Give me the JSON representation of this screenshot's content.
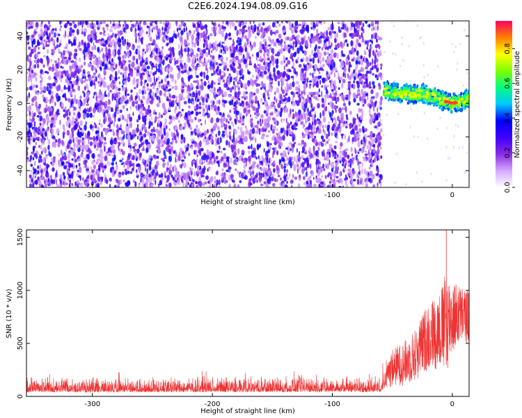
{
  "figure_title": "C2E6.2024.194.08.09.G16",
  "chart_data": [
    {
      "type": "heatmap",
      "xlabel": "Height of straight line (km)",
      "ylabel": "Frequency (Hz)",
      "xlim": [
        -355,
        14
      ],
      "ylim": [
        -50,
        49
      ],
      "x_ticks": [
        -300,
        -200,
        -100,
        0
      ],
      "y_ticks": [
        -40,
        -20,
        0,
        20,
        40
      ],
      "noise_region": {
        "x": [
          -355,
          -59
        ],
        "y": [
          -50,
          49
        ]
      },
      "signal_track": [
        {
          "x": -57,
          "y": 8
        },
        {
          "x": -45,
          "y": 6
        },
        {
          "x": -35,
          "y": 5.5
        },
        {
          "x": -25,
          "y": 6
        },
        {
          "x": -15,
          "y": 4
        },
        {
          "x": -8,
          "y": 1.5
        },
        {
          "x": 0,
          "y": 0
        },
        {
          "x": 7,
          "y": 1
        },
        {
          "x": 14,
          "y": 3
        }
      ],
      "colorbar": {
        "label": "Normalized spectral amplitude",
        "ticks": [
          "0.0",
          "0.2",
          "0.4",
          "0.6",
          "0.8"
        ],
        "range": [
          0,
          0.96
        ],
        "colors": [
          "#ffffff",
          "#d6a8ff",
          "#8a2be2",
          "#4000ff",
          "#0000ff",
          "#00c8ff",
          "#00ff80",
          "#80ff00",
          "#ffff00",
          "#ff8000",
          "#ff0060"
        ]
      },
      "grid": false
    },
    {
      "type": "line",
      "xlabel": "Height of straight line (km)",
      "ylabel": "SNR (10 * v/v)",
      "xlim": [
        -355,
        14
      ],
      "ylim": [
        0,
        1570
      ],
      "x_ticks": [
        -300,
        -200,
        -100,
        0
      ],
      "y_ticks": [
        0,
        500,
        1000,
        1500
      ],
      "color": "#ee3333",
      "envelope": [
        {
          "x": -355,
          "low": 5,
          "high": 240
        },
        {
          "x": -300,
          "low": 5,
          "high": 230
        },
        {
          "x": -200,
          "low": 5,
          "high": 240
        },
        {
          "x": -100,
          "low": 5,
          "high": 250
        },
        {
          "x": -60,
          "low": 5,
          "high": 250
        },
        {
          "x": -50,
          "low": 100,
          "high": 450
        },
        {
          "x": -40,
          "low": 100,
          "high": 520
        },
        {
          "x": -30,
          "low": 150,
          "high": 650
        },
        {
          "x": -20,
          "low": 250,
          "high": 900
        },
        {
          "x": -10,
          "low": 250,
          "high": 1000
        },
        {
          "x": -5,
          "low": 200,
          "high": 1200
        },
        {
          "x": 0,
          "low": 400,
          "high": 1100
        },
        {
          "x": 7,
          "low": 500,
          "high": 1050
        },
        {
          "x": 14,
          "low": 500,
          "high": 1000
        }
      ],
      "peak": {
        "x": -5,
        "y": 1570
      },
      "grid": false
    }
  ]
}
